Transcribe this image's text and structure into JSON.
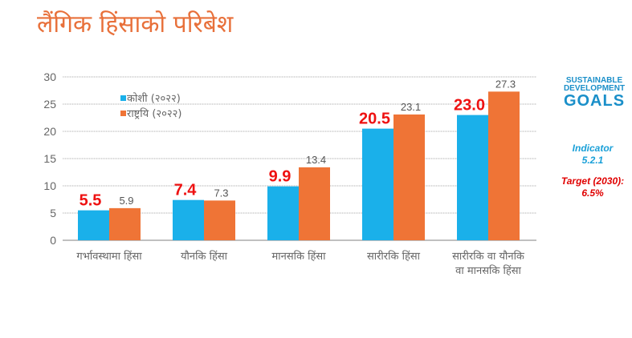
{
  "title": "लैंगिक हिंसाको परिबेश",
  "sdg_logo": {
    "line1": "SUSTAINABLE",
    "line2": "DEVELOPMENT",
    "line3": "GOALS"
  },
  "indicator": {
    "label": "Indicator",
    "value": "5.2.1"
  },
  "target": {
    "label": "Target (2030):",
    "value": "6.5%"
  },
  "chart_data": {
    "type": "bar",
    "title": "",
    "xlabel": "",
    "ylabel": "",
    "ylim": [
      0,
      30
    ],
    "yticks": [
      0,
      5,
      10,
      15,
      20,
      25,
      30
    ],
    "grid": true,
    "legend_position": "top-left",
    "categories": [
      [
        "गर्भावस्थामा हिंसा"
      ],
      [
        "यौनकि हिंसा"
      ],
      [
        "मानसकि हिंसा"
      ],
      [
        "सारीरकि हिंसा"
      ],
      [
        "सारीरकि वा यौनकि",
        "वा मानसकि हिंसा"
      ]
    ],
    "series": [
      {
        "name": "कोशी (२०२२)",
        "color": "#1ab0ea",
        "label_color": "#ee1111",
        "values": [
          5.5,
          7.4,
          9.9,
          20.5,
          23.0
        ],
        "labels": [
          "5.5",
          "7.4",
          "9.9",
          "20.5",
          "23.0"
        ]
      },
      {
        "name": "राष्ट्रयि (२०२२)",
        "color": "#ef7436",
        "label_color": "#555555",
        "values": [
          5.9,
          7.3,
          13.4,
          23.1,
          27.3
        ],
        "labels": [
          "5.9",
          "7.3",
          "13.4",
          "23.1",
          "27.3"
        ]
      }
    ]
  }
}
